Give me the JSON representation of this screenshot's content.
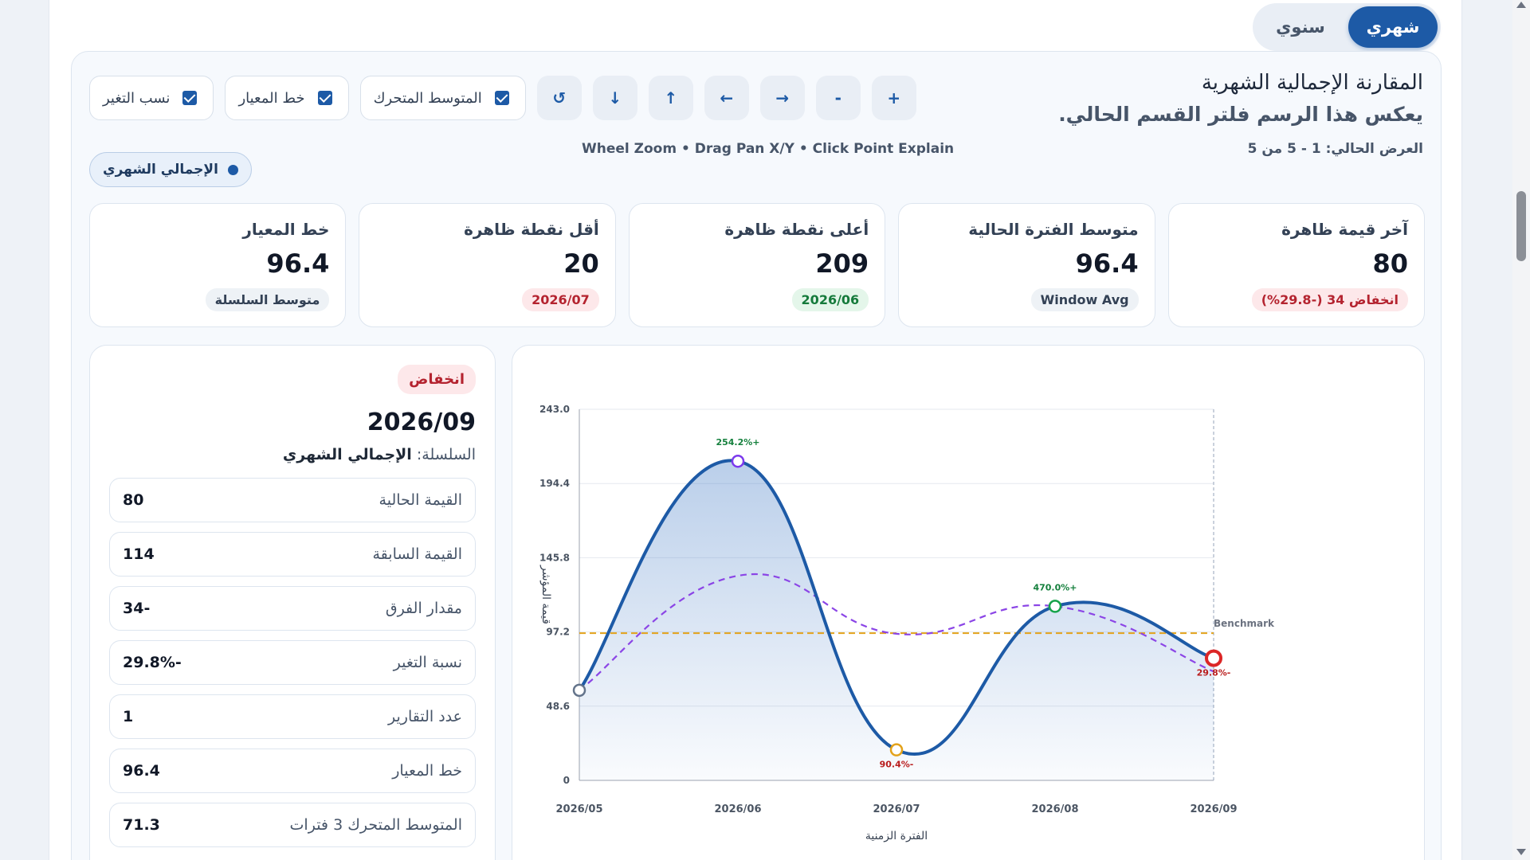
{
  "period_switch": {
    "monthly": "شهري",
    "yearly": "سنوي",
    "active": "monthly"
  },
  "header": {
    "title": "المقارنة الإجمالية الشهرية",
    "subtitle": "يعكس هذا الرسم فلتر القسم الحالي.",
    "view_range": "العرض الحالي: 1 - 5 من 5",
    "hint": "Wheel Zoom • Drag Pan X/Y • Click Point Explain"
  },
  "toolbar": {
    "toggles": [
      {
        "label": "نسب التغير",
        "checked": true
      },
      {
        "label": "خط المعيار",
        "checked": true
      },
      {
        "label": "المتوسط المتحرك",
        "checked": true
      }
    ],
    "buttons": [
      "↺",
      "↓",
      "↑",
      "←",
      "→",
      "-",
      "+"
    ]
  },
  "series_pill": "الإجمالي الشهري",
  "kpis": [
    {
      "label": "آخر قيمة ظاهرة",
      "value": "80",
      "badge": "انخفاض 34 (-29.8%)",
      "tone": "red"
    },
    {
      "label": "متوسط الفترة الحالية",
      "value": "96.4",
      "badge": "Window Avg",
      "tone": "gray"
    },
    {
      "label": "أعلى نقطة ظاهرة",
      "value": "209",
      "badge": "2026/06",
      "tone": "green"
    },
    {
      "label": "أقل نقطة ظاهرة",
      "value": "20",
      "badge": "2026/07",
      "tone": "red"
    },
    {
      "label": "خط المعيار",
      "value": "96.4",
      "badge": "متوسط السلسلة",
      "tone": "gray"
    }
  ],
  "explain": {
    "status": "انخفاض",
    "period": "2026/09",
    "series_prefix": "السلسلة:",
    "series_name": "الإجمالي الشهري",
    "rows": [
      {
        "label": "القيمة الحالية",
        "value": "80"
      },
      {
        "label": "القيمة السابقة",
        "value": "114"
      },
      {
        "label": "مقدار الفرق",
        "value": "34-"
      },
      {
        "label": "نسبة التغير",
        "value": "29.8%-"
      },
      {
        "label": "عدد التقارير",
        "value": "1"
      },
      {
        "label": "خط المعيار",
        "value": "96.4"
      },
      {
        "label": "المتوسط المتحرك 3 فترات",
        "value": "71.3"
      }
    ]
  },
  "chart_data": {
    "type": "line",
    "categories": [
      "2026/05",
      "2026/06",
      "2026/07",
      "2026/08",
      "2026/09"
    ],
    "series": [
      {
        "name": "الإجمالي الشهري",
        "values": [
          59,
          209,
          20,
          114,
          80
        ],
        "color": "#1d5aa6"
      },
      {
        "values": [
          59,
          134,
          96,
          114,
          71.3
        ],
        "color": "#8b45e6",
        "style": "dashed"
      }
    ],
    "benchmark": {
      "value": 96.4,
      "label": "Benchmark",
      "color": "#e3a21a"
    },
    "change_labels": [
      "",
      "254.2%+",
      "90.4%-",
      "470.0%+",
      "29.8%-"
    ],
    "point_colors": [
      "#64748b",
      "#7c3aed",
      "#e3a21a",
      "#16a34a",
      "#dc2626"
    ],
    "xlabel": "الفترة الزمنية",
    "ylabel": "قيمة المؤشر",
    "ylim": [
      0,
      243
    ],
    "yticks": [
      "0",
      "48.6",
      "97.2",
      "145.8",
      "194.4",
      "243.0"
    ],
    "grid": true
  }
}
